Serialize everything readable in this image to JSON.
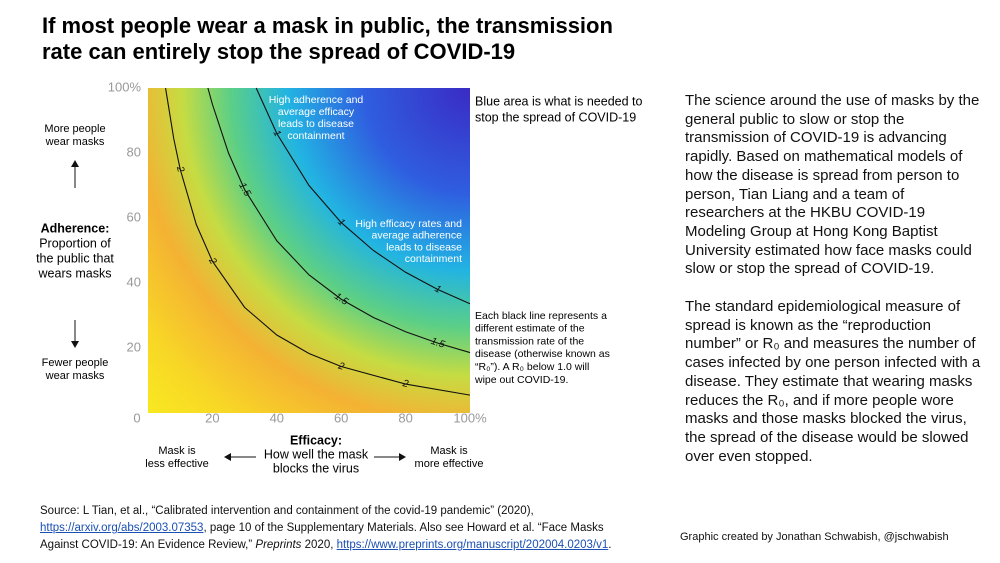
{
  "chart_data": {
    "type": "contour",
    "title": [
      "If most people wear a mask in public, the transmission",
      "rate can entirely stop the spread of COVID-19"
    ],
    "xlim": [
      0,
      100
    ],
    "ylim": [
      0,
      100
    ],
    "xticks": [
      0,
      20,
      40,
      60,
      80,
      {
        "value": 100,
        "label": "100%"
      }
    ],
    "yticks": [
      20,
      40,
      60,
      80,
      {
        "value": 100,
        "label": "100%"
      }
    ],
    "x_label": {
      "term": "Efficacy:",
      "lines": [
        "How well the mask",
        "blocks the virus"
      ],
      "low": [
        "Mask is",
        "less effective"
      ],
      "high": [
        "Mask is",
        "more effective"
      ]
    },
    "y_label": {
      "term": "Adherence:",
      "lines": [
        "Proportion of",
        "the public that",
        "wears masks"
      ],
      "high": [
        "More people",
        "wear masks"
      ],
      "low": [
        "Fewer people",
        "wear masks"
      ]
    },
    "contours": [
      {
        "level": 1,
        "color": "#111111",
        "x": [
          33.6,
          40,
          50,
          60,
          70,
          80,
          90,
          100
        ],
        "y": [
          100,
          86,
          70,
          58.6,
          50,
          43.3,
          38,
          33.6
        ]
      },
      {
        "level": 1.5,
        "color": "#111111",
        "x": [
          18.6,
          20,
          25,
          30,
          40,
          50,
          60,
          70,
          80,
          90,
          100
        ],
        "y": [
          100,
          95,
          80,
          68.75,
          53,
          42.5,
          35,
          29.4,
          25,
          21.5,
          18.6
        ]
      },
      {
        "level": 2,
        "color": "#111111",
        "x": [
          5.45,
          8,
          10,
          15,
          20,
          30,
          40,
          50,
          60,
          80,
          100
        ],
        "y": [
          100,
          84.4,
          75,
          58,
          46.7,
          32.5,
          24,
          18.3,
          14.3,
          8.9,
          5.5
        ]
      }
    ],
    "annotations": {
      "top": [
        "High adherence and",
        "average efficacy",
        "leads to disease",
        "containment"
      ],
      "right": [
        "High efficacy rates and",
        "average adherence",
        "leads to disease",
        "containment"
      ],
      "blue_note": [
        "Blue area is what is needed to",
        "stop the spread of COVID-19"
      ],
      "lines_note": [
        "Each black line represents a",
        "different estimate of the",
        "transmission rate of the",
        "disease (otherwise known as",
        "“R₀”). A R₀ below 1.0 will",
        "wipe out COVID-19."
      ]
    }
  },
  "body": {
    "paragraphs": [
      "The science around the use of masks by the general public to slow or stop the transmission of COVID-19 is advancing rapidly. Based on mathematical models of how the disease is spread from person to person, Tian Liang and a team of researchers at the HKBU COVID-19 Modeling Group at Hong Kong Baptist University estimated how face masks could slow or stop the spread of COVID-19.",
      "The standard epidemiological measure of spread is known as the “reproduction number” or R₀ and measures the number of cases infected by one person infected with a disease. They estimate that wearing masks reduces the R₀, and if more people wore masks and those masks blocked the virus, the spread of the disease would be slowed over even stopped."
    ]
  },
  "source": [
    "Source: L Tian, et al., “Calibrated intervention and containment of the covid-19 pandemic” (2020), ",
    "https://arxiv.org/abs/2003.07353",
    ", page 10 of the Supplementary Materials. Also see Howard et al. “Face Masks Against COVID-19: An Evidence Review,” ",
    "Preprints",
    " 2020, ",
    "https://www.preprints.org/manuscript/202004.0203/v1",
    "."
  ],
  "credit": "Graphic created by Jonathan Schwabish, @jschwabish"
}
